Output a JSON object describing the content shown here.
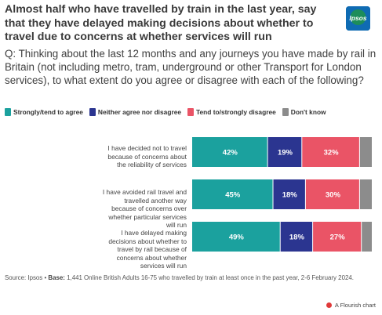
{
  "header": {
    "title": "Almost half who have travelled by train in the last year, say that they have delayed making decisions about whether to travel due to concerns at whether services will run",
    "subtitle": "Q: Thinking about the last 12 months and any journeys you have made by rail in Britain (not including metro, tram, underground or other Transport for London services), to what extent do you agree or disagree with each of the following?",
    "logo_text": "Ipsos"
  },
  "colors": {
    "agree": "#1ba19e",
    "neither": "#2b3590",
    "disagree": "#ea5466",
    "dont_know": "#8c8c8c"
  },
  "chart_data": {
    "type": "bar",
    "orientation": "horizontal",
    "stacked": true,
    "categories": [
      "I have decided not to travel because of concerns about the reliability of services",
      "I have avoided rail travel and travelled another way because of concerns over whether particular services will run",
      "I have delayed making decisions about whether to travel by rail because of concerns about whether services will run"
    ],
    "series": [
      {
        "name": "Strongly/tend to agree",
        "values": [
          42,
          45,
          49
        ],
        "color": "#1ba19e"
      },
      {
        "name": "Neither agree nor disagree",
        "values": [
          19,
          18,
          18
        ],
        "color": "#2b3590"
      },
      {
        "name": "Tend to/strongly disagree",
        "values": [
          32,
          30,
          27
        ],
        "color": "#ea5466"
      },
      {
        "name": "Don't know",
        "values": [
          7,
          7,
          6
        ],
        "color": "#8c8c8c"
      }
    ],
    "data_labels": [
      [
        "42%",
        "19%",
        "32%",
        ""
      ],
      [
        "45%",
        "18%",
        "30%",
        ""
      ],
      [
        "49%",
        "18%",
        "27%",
        ""
      ]
    ],
    "xlim": [
      0,
      100
    ],
    "legend_position": "top",
    "grid": false
  },
  "footer": {
    "source_prefix": "Source: Ipsos •",
    "base_label": "Base:",
    "base_text": "1,441 Online British Adults 16-75 who travelled by train at least once in the past year, 2-6 February 2024.",
    "credit": "A Flourish chart"
  }
}
